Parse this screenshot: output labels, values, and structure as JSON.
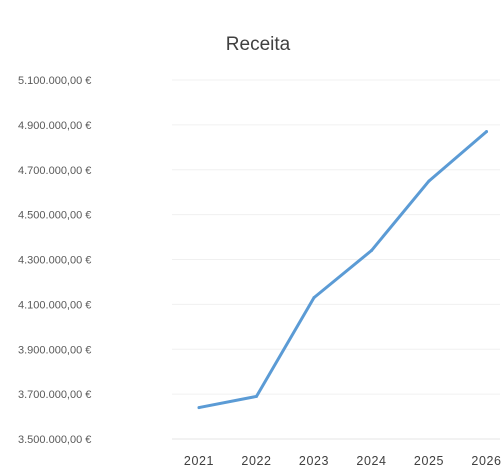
{
  "chart_data": {
    "type": "line",
    "title": "Receita",
    "xlabel": "",
    "ylabel": "",
    "categories": [
      "2021",
      "2022",
      "2023",
      "2024",
      "2025",
      "2026"
    ],
    "series": [
      {
        "values": [
          3640000,
          3690000,
          4130000,
          4340000,
          4650000,
          4870000
        ],
        "color": "#5b9bd5"
      }
    ],
    "ylim": [
      3500000,
      5100000
    ],
    "yticks": [
      3500000,
      3700000,
      3900000,
      4100000,
      4300000,
      4500000,
      4700000,
      4900000,
      5100000
    ],
    "ytick_labels": [
      "3.500.000,00 €",
      "3.700.000,00 €",
      "3.900.000,00 €",
      "4.100.000,00 €",
      "4.300.000,00 €",
      "4.500.000,00 €",
      "4.700.000,00 €",
      "4.900.000,00 €",
      "5.100.000,00 €"
    ],
    "grid": true,
    "legend": "none"
  }
}
